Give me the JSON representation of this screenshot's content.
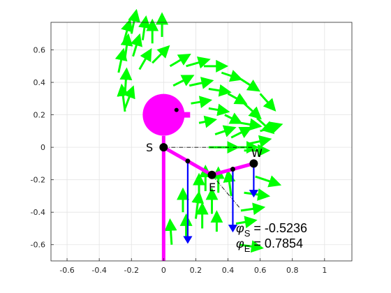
{
  "chart_data": {
    "type": "quiver",
    "title": "",
    "xlabel": "",
    "ylabel": "",
    "xlim": [
      -0.7,
      1.17
    ],
    "ylim": [
      -0.7,
      0.77
    ],
    "xticks": [
      -0.6,
      -0.4,
      -0.2,
      0,
      0.2,
      0.4,
      0.6,
      0.8,
      1
    ],
    "yticks": [
      -0.6,
      -0.4,
      -0.2,
      0,
      0.2,
      0.4,
      0.6
    ],
    "xtick_labels": [
      "-0.6",
      "-0.4",
      "-0.2",
      "0",
      "0.2",
      "0.4",
      "0.6",
      "0.8",
      "1"
    ],
    "ytick_labels": [
      "-0.6",
      "-0.4",
      "-0.2",
      "0",
      "0.2",
      "0.4",
      "0.6"
    ],
    "grid": true,
    "colors": {
      "body": "#ff00ff",
      "field_arrows": "#00ff00",
      "force_arrows": "#0000ff",
      "joints": "#000000"
    },
    "points": {
      "S": [
        0,
        0
      ],
      "E": [
        0.3,
        -0.17
      ],
      "W": [
        0.56,
        -0.1
      ]
    },
    "point_labels": {
      "S": "S",
      "E": "E",
      "W": "W"
    },
    "head": {
      "center": [
        0,
        0.2
      ],
      "radius": 0.13,
      "eye": [
        0.08,
        0.23
      ]
    },
    "arm_markers": [
      [
        0.15,
        -0.085
      ],
      [
        0.43,
        -0.135
      ]
    ],
    "force_vectors": [
      {
        "x": 0.15,
        "y": -0.085,
        "u": 0,
        "v": -0.5
      },
      {
        "x": 0.43,
        "y": -0.135,
        "u": 0,
        "v": -0.38
      },
      {
        "x": 0.56,
        "y": -0.1,
        "u": 0,
        "v": -0.2
      }
    ],
    "field_vectors": [
      {
        "x": -0.28,
        "y": 0.46,
        "u": 0.03,
        "v": 0.14
      },
      {
        "x": -0.24,
        "y": 0.55,
        "u": 0.02,
        "v": 0.14
      },
      {
        "x": -0.25,
        "y": 0.64,
        "u": 0.04,
        "v": 0.14
      },
      {
        "x": -0.2,
        "y": 0.7,
        "u": 0.03,
        "v": 0.14
      },
      {
        "x": -0.13,
        "y": 0.66,
        "u": 0.02,
        "v": 0.14
      },
      {
        "x": -0.07,
        "y": 0.64,
        "u": 0.0,
        "v": 0.14
      },
      {
        "x": -0.01,
        "y": 0.68,
        "u": 0.0,
        "v": 0.14
      },
      {
        "x": -0.19,
        "y": 0.56,
        "u": 0.04,
        "v": 0.13
      },
      {
        "x": -0.24,
        "y": 0.33,
        "u": 0.01,
        "v": 0.15
      },
      {
        "x": -0.24,
        "y": 0.22,
        "u": -0.02,
        "v": 0.16
      },
      {
        "x": -0.24,
        "y": 0.24,
        "u": 0.05,
        "v": 0.13
      },
      {
        "x": -0.15,
        "y": 0.48,
        "u": 0.07,
        "v": 0.12
      },
      {
        "x": -0.07,
        "y": 0.52,
        "u": 0.1,
        "v": 0.1
      },
      {
        "x": 0.04,
        "y": 0.5,
        "u": 0.12,
        "v": 0.07
      },
      {
        "x": 0.14,
        "y": 0.5,
        "u": 0.14,
        "v": 0.04
      },
      {
        "x": 0.25,
        "y": 0.5,
        "u": 0.14,
        "v": 0.0
      },
      {
        "x": 0.36,
        "y": 0.46,
        "u": 0.12,
        "v": -0.04
      },
      {
        "x": 0.48,
        "y": 0.42,
        "u": 0.11,
        "v": -0.07
      },
      {
        "x": 0.6,
        "y": 0.33,
        "u": 0.09,
        "v": -0.1
      },
      {
        "x": 0.06,
        "y": 0.38,
        "u": 0.12,
        "v": 0.06
      },
      {
        "x": 0.16,
        "y": 0.38,
        "u": 0.14,
        "v": 0.03
      },
      {
        "x": 0.28,
        "y": 0.36,
        "u": 0.13,
        "v": -0.02
      },
      {
        "x": 0.4,
        "y": 0.33,
        "u": 0.11,
        "v": -0.06
      },
      {
        "x": 0.5,
        "y": 0.27,
        "u": 0.1,
        "v": -0.09
      },
      {
        "x": 0.58,
        "y": 0.18,
        "u": 0.1,
        "v": -0.09
      },
      {
        "x": 0.17,
        "y": 0.27,
        "u": 0.12,
        "v": 0.02
      },
      {
        "x": 0.28,
        "y": 0.24,
        "u": 0.12,
        "v": -0.02
      },
      {
        "x": 0.38,
        "y": 0.2,
        "u": 0.1,
        "v": -0.05
      },
      {
        "x": 0.48,
        "y": 0.15,
        "u": 0.12,
        "v": -0.02
      },
      {
        "x": 0.6,
        "y": 0.1,
        "u": 0.13,
        "v": 0.04
      },
      {
        "x": 0.22,
        "y": 0.15,
        "u": 0.1,
        "v": 0.02
      },
      {
        "x": 0.32,
        "y": 0.08,
        "u": 0.12,
        "v": 0.04
      },
      {
        "x": 0.42,
        "y": 0.06,
        "u": 0.12,
        "v": 0.06
      },
      {
        "x": 0.52,
        "y": 0.02,
        "u": 0.14,
        "v": 0.03
      },
      {
        "x": 0.28,
        "y": 0.0,
        "u": 0.18,
        "v": 0.0
      },
      {
        "x": 0.4,
        "y": 0.0,
        "u": 0.18,
        "v": 0.0
      },
      {
        "x": 0.5,
        "y": -0.02,
        "u": 0.15,
        "v": 0.0
      },
      {
        "x": 0.57,
        "y": -0.18,
        "u": 0.15,
        "v": -0.05
      },
      {
        "x": 0.5,
        "y": -0.28,
        "u": 0.15,
        "v": -0.02
      },
      {
        "x": 0.48,
        "y": -0.39,
        "u": 0.14,
        "v": 0.02
      },
      {
        "x": 0.45,
        "y": -0.47,
        "u": 0.12,
        "v": 0.02
      },
      {
        "x": 0.47,
        "y": -0.6,
        "u": 0.14,
        "v": -0.02
      },
      {
        "x": 0.33,
        "y": -0.52,
        "u": 0.0,
        "v": 0.12
      },
      {
        "x": 0.3,
        "y": -0.41,
        "u": 0.0,
        "v": 0.15
      },
      {
        "x": 0.24,
        "y": -0.5,
        "u": 0.0,
        "v": 0.15
      },
      {
        "x": 0.2,
        "y": -0.44,
        "u": 0.02,
        "v": 0.16
      },
      {
        "x": 0.22,
        "y": -0.33,
        "u": 0.0,
        "v": 0.16
      },
      {
        "x": 0.14,
        "y": -0.57,
        "u": 0.0,
        "v": 0.15
      },
      {
        "x": 0.12,
        "y": -0.4,
        "u": 0.0,
        "v": 0.14
      },
      {
        "x": 0.05,
        "y": -0.6,
        "u": -0.01,
        "v": 0.15
      },
      {
        "x": 0.0,
        "y": -0.51,
        "u": 0.0,
        "v": 0.0
      },
      {
        "x": 0.34,
        "y": -0.28,
        "u": 0.0,
        "v": 0.15
      },
      {
        "x": 0.26,
        "y": -0.27,
        "u": 0.0,
        "v": 0.15
      },
      {
        "x": 0.42,
        "y": -0.3,
        "u": -0.02,
        "v": 0.15
      }
    ],
    "annotations": [
      {
        "symbol": "φ",
        "subscript": "S",
        "text": " = -0.5236"
      },
      {
        "symbol": "φ",
        "subscript": "E",
        "text": " = 0.7854"
      }
    ]
  }
}
